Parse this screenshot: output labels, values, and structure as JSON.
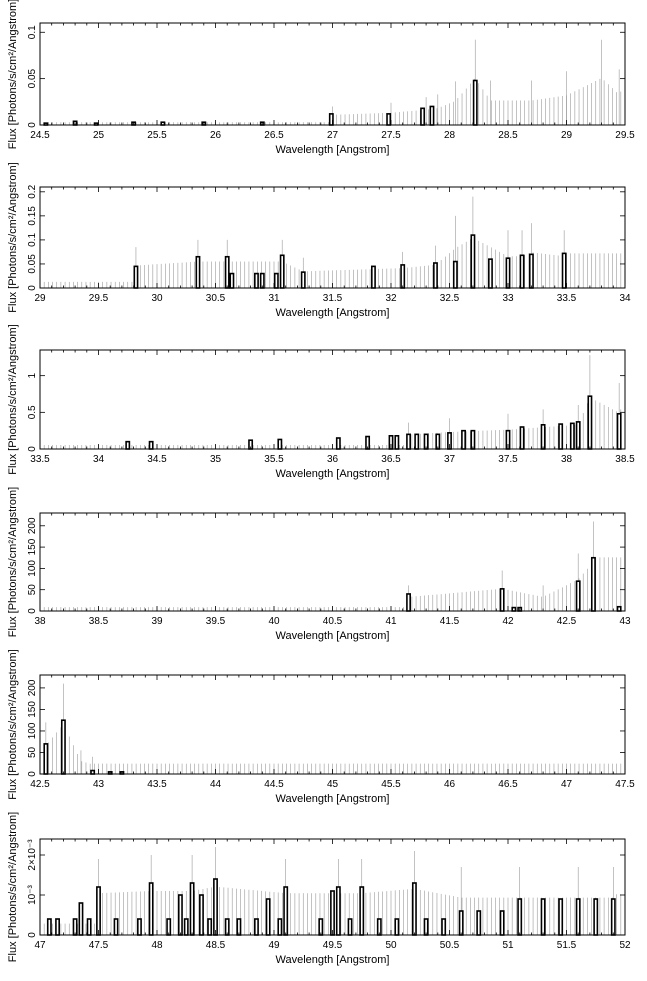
{
  "chart_data": [
    {
      "type": "bar",
      "xlabel": "Wavelength [Angstrom]",
      "ylabel": "Flux [Photons/s/cm²/Angstrom]",
      "xlim": [
        24.5,
        29.5
      ],
      "ylim": [
        0,
        0.11
      ],
      "xticks": [
        "24.5",
        "25",
        "25.5",
        "26",
        "26.5",
        "27",
        "27.5",
        "28",
        "28.5",
        "29",
        "29.5"
      ],
      "yticks": [
        "0",
        "0.05",
        "0.1"
      ],
      "bars": [
        {
          "x": 24.55,
          "y": 0.002
        },
        {
          "x": 24.8,
          "y": 0.004
        },
        {
          "x": 24.98,
          "y": 0.002
        },
        {
          "x": 25.3,
          "y": 0.003
        },
        {
          "x": 25.55,
          "y": 0.003
        },
        {
          "x": 25.9,
          "y": 0.003
        },
        {
          "x": 26.4,
          "y": 0.003
        },
        {
          "x": 26.99,
          "y": 0.012
        },
        {
          "x": 27.48,
          "y": 0.012
        },
        {
          "x": 27.77,
          "y": 0.018
        },
        {
          "x": 27.85,
          "y": 0.02
        },
        {
          "x": 28.22,
          "y": 0.048
        }
      ],
      "errors": [
        {
          "x": 27.0,
          "y": 0.02
        },
        {
          "x": 27.5,
          "y": 0.024
        },
        {
          "x": 27.8,
          "y": 0.03
        },
        {
          "x": 27.9,
          "y": 0.033
        },
        {
          "x": 28.05,
          "y": 0.047
        },
        {
          "x": 28.22,
          "y": 0.092
        },
        {
          "x": 28.35,
          "y": 0.048
        },
        {
          "x": 28.7,
          "y": 0.048
        },
        {
          "x": 29.0,
          "y": 0.058
        },
        {
          "x": 29.3,
          "y": 0.092
        },
        {
          "x": 29.45,
          "y": 0.06
        }
      ]
    },
    {
      "type": "bar",
      "xlabel": "Wavelength [Angstrom]",
      "ylabel": "Flux [Photons/s/cm²/Angstrom]",
      "xlim": [
        29,
        34
      ],
      "ylim": [
        0,
        0.21
      ],
      "xticks": [
        "29",
        "29.5",
        "30",
        "30.5",
        "31",
        "31.5",
        "32",
        "32.5",
        "33",
        "33.5",
        "34"
      ],
      "yticks": [
        "0",
        "0.05",
        "0.1",
        "0.15",
        "0.2"
      ],
      "bars": [
        {
          "x": 29.82,
          "y": 0.045
        },
        {
          "x": 30.35,
          "y": 0.065
        },
        {
          "x": 30.6,
          "y": 0.065
        },
        {
          "x": 30.64,
          "y": 0.03
        },
        {
          "x": 30.85,
          "y": 0.03
        },
        {
          "x": 30.9,
          "y": 0.03
        },
        {
          "x": 31.02,
          "y": 0.03
        },
        {
          "x": 31.07,
          "y": 0.068
        },
        {
          "x": 31.25,
          "y": 0.033
        },
        {
          "x": 31.85,
          "y": 0.045
        },
        {
          "x": 32.1,
          "y": 0.048
        },
        {
          "x": 32.38,
          "y": 0.052
        },
        {
          "x": 32.55,
          "y": 0.055
        },
        {
          "x": 32.7,
          "y": 0.11
        },
        {
          "x": 32.85,
          "y": 0.06
        },
        {
          "x": 33.0,
          "y": 0.062
        },
        {
          "x": 33.12,
          "y": 0.068
        },
        {
          "x": 33.2,
          "y": 0.07
        },
        {
          "x": 33.48,
          "y": 0.072
        }
      ],
      "errors": [
        {
          "x": 29.82,
          "y": 0.085
        },
        {
          "x": 30.35,
          "y": 0.1
        },
        {
          "x": 30.6,
          "y": 0.1
        },
        {
          "x": 31.07,
          "y": 0.1
        },
        {
          "x": 31.25,
          "y": 0.063
        },
        {
          "x": 32.1,
          "y": 0.075
        },
        {
          "x": 32.38,
          "y": 0.088
        },
        {
          "x": 32.55,
          "y": 0.15
        },
        {
          "x": 32.7,
          "y": 0.19
        },
        {
          "x": 33.0,
          "y": 0.12
        },
        {
          "x": 33.12,
          "y": 0.12
        },
        {
          "x": 33.2,
          "y": 0.135
        },
        {
          "x": 33.48,
          "y": 0.12
        }
      ]
    },
    {
      "type": "bar",
      "xlabel": "Wavelength [Angstrom]",
      "ylabel": "Flux [Photons/s/cm²/Angstrom]",
      "xlim": [
        33.5,
        38.5
      ],
      "ylim": [
        0,
        1.35
      ],
      "xticks": [
        "33.5",
        "34",
        "34.5",
        "35",
        "35.5",
        "36",
        "36.5",
        "37",
        "37.5",
        "38",
        "38.5"
      ],
      "yticks": [
        "0",
        "0.5",
        "1"
      ],
      "bars": [
        {
          "x": 34.25,
          "y": 0.1
        },
        {
          "x": 34.45,
          "y": 0.1
        },
        {
          "x": 35.3,
          "y": 0.12
        },
        {
          "x": 35.55,
          "y": 0.13
        },
        {
          "x": 36.05,
          "y": 0.15
        },
        {
          "x": 36.3,
          "y": 0.17
        },
        {
          "x": 36.5,
          "y": 0.18
        },
        {
          "x": 36.55,
          "y": 0.18
        },
        {
          "x": 36.65,
          "y": 0.2
        },
        {
          "x": 36.72,
          "y": 0.2
        },
        {
          "x": 36.8,
          "y": 0.2
        },
        {
          "x": 36.9,
          "y": 0.2
        },
        {
          "x": 37.0,
          "y": 0.22
        },
        {
          "x": 37.12,
          "y": 0.25
        },
        {
          "x": 37.2,
          "y": 0.25
        },
        {
          "x": 37.5,
          "y": 0.25
        },
        {
          "x": 37.62,
          "y": 0.3
        },
        {
          "x": 37.8,
          "y": 0.33
        },
        {
          "x": 37.95,
          "y": 0.34
        },
        {
          "x": 38.05,
          "y": 0.35
        },
        {
          "x": 38.1,
          "y": 0.37
        },
        {
          "x": 38.2,
          "y": 0.72
        },
        {
          "x": 38.45,
          "y": 0.48
        }
      ],
      "errors": [
        {
          "x": 36.65,
          "y": 0.36
        },
        {
          "x": 37.0,
          "y": 0.42
        },
        {
          "x": 37.5,
          "y": 0.48
        },
        {
          "x": 37.8,
          "y": 0.54
        },
        {
          "x": 38.1,
          "y": 0.6
        },
        {
          "x": 38.2,
          "y": 1.28
        },
        {
          "x": 38.45,
          "y": 0.9
        }
      ]
    },
    {
      "type": "bar",
      "xlabel": "Wavelength [Angstrom]",
      "ylabel": "Flux [Photons/s/cm²/Angstrom]",
      "xlim": [
        38,
        43
      ],
      "ylim": [
        0,
        230
      ],
      "xticks": [
        "38",
        "38.5",
        "39",
        "39.5",
        "40",
        "40.5",
        "41",
        "41.5",
        "42",
        "42.5",
        "43"
      ],
      "yticks": [
        "0",
        "50",
        "100",
        "150",
        "200"
      ],
      "bars": [
        {
          "x": 41.15,
          "y": 40
        },
        {
          "x": 41.95,
          "y": 52
        },
        {
          "x": 42.05,
          "y": 8
        },
        {
          "x": 42.1,
          "y": 8
        },
        {
          "x": 42.6,
          "y": 70
        },
        {
          "x": 42.73,
          "y": 125
        },
        {
          "x": 42.95,
          "y": 10
        }
      ],
      "errors": [
        {
          "x": 41.15,
          "y": 60
        },
        {
          "x": 41.95,
          "y": 95
        },
        {
          "x": 42.3,
          "y": 60
        },
        {
          "x": 42.6,
          "y": 135
        },
        {
          "x": 42.73,
          "y": 210
        }
      ]
    },
    {
      "type": "bar",
      "xlabel": "Wavelength [Angstrom]",
      "ylabel": "Flux [Photons/s/cm²/Angstrom]",
      "xlim": [
        42.5,
        47.5
      ],
      "ylim": [
        0,
        230
      ],
      "xticks": [
        "42.5",
        "43",
        "43.5",
        "44",
        "44.5",
        "45",
        "45.5",
        "46",
        "46.5",
        "47",
        "47.5"
      ],
      "yticks": [
        "0",
        "50",
        "100",
        "150",
        "200"
      ],
      "bars": [
        {
          "x": 42.55,
          "y": 70
        },
        {
          "x": 42.7,
          "y": 125
        },
        {
          "x": 42.95,
          "y": 8
        },
        {
          "x": 43.1,
          "y": 5
        },
        {
          "x": 43.2,
          "y": 5
        }
      ],
      "errors": [
        {
          "x": 42.55,
          "y": 120
        },
        {
          "x": 42.7,
          "y": 210
        },
        {
          "x": 42.85,
          "y": 55
        },
        {
          "x": 42.95,
          "y": 40
        }
      ]
    },
    {
      "type": "bar",
      "xlabel": "Wavelength [Angstrom]",
      "ylabel": "Flux [Photons/s/cm²/Angstrom]",
      "xlim": [
        47,
        52
      ],
      "ylim": [
        0,
        0.0024
      ],
      "xticks": [
        "47",
        "47.5",
        "48",
        "48.5",
        "49",
        "49.5",
        "50",
        "50.5",
        "51",
        "51.5",
        "52"
      ],
      "yticks": [
        "0",
        "10⁻³",
        "2×10⁻³"
      ],
      "bars": [
        {
          "x": 47.08,
          "y": 0.0004
        },
        {
          "x": 47.15,
          "y": 0.0004
        },
        {
          "x": 47.3,
          "y": 0.0004
        },
        {
          "x": 47.35,
          "y": 0.0008
        },
        {
          "x": 47.42,
          "y": 0.0004
        },
        {
          "x": 47.5,
          "y": 0.0012
        },
        {
          "x": 47.65,
          "y": 0.0004
        },
        {
          "x": 47.85,
          "y": 0.0004
        },
        {
          "x": 47.95,
          "y": 0.0013
        },
        {
          "x": 48.1,
          "y": 0.0004
        },
        {
          "x": 48.2,
          "y": 0.001
        },
        {
          "x": 48.25,
          "y": 0.0004
        },
        {
          "x": 48.3,
          "y": 0.0013
        },
        {
          "x": 48.38,
          "y": 0.001
        },
        {
          "x": 48.45,
          "y": 0.0004
        },
        {
          "x": 48.5,
          "y": 0.0014
        },
        {
          "x": 48.6,
          "y": 0.0004
        },
        {
          "x": 48.7,
          "y": 0.0004
        },
        {
          "x": 48.85,
          "y": 0.0004
        },
        {
          "x": 48.95,
          "y": 0.0009
        },
        {
          "x": 49.05,
          "y": 0.0004
        },
        {
          "x": 49.1,
          "y": 0.0012
        },
        {
          "x": 49.4,
          "y": 0.0004
        },
        {
          "x": 49.5,
          "y": 0.0011
        },
        {
          "x": 49.55,
          "y": 0.0012
        },
        {
          "x": 49.65,
          "y": 0.0004
        },
        {
          "x": 49.75,
          "y": 0.0012
        },
        {
          "x": 49.9,
          "y": 0.0004
        },
        {
          "x": 50.05,
          "y": 0.0004
        },
        {
          "x": 50.2,
          "y": 0.0013
        },
        {
          "x": 50.3,
          "y": 0.0004
        },
        {
          "x": 50.45,
          "y": 0.0004
        },
        {
          "x": 50.6,
          "y": 0.0006
        },
        {
          "x": 50.75,
          "y": 0.0006
        },
        {
          "x": 50.95,
          "y": 0.0006
        },
        {
          "x": 51.1,
          "y": 0.0009
        },
        {
          "x": 51.3,
          "y": 0.0009
        },
        {
          "x": 51.45,
          "y": 0.0009
        },
        {
          "x": 51.6,
          "y": 0.0009
        },
        {
          "x": 51.75,
          "y": 0.0009
        },
        {
          "x": 51.9,
          "y": 0.0009
        }
      ],
      "errors": [
        {
          "x": 47.5,
          "y": 0.0019
        },
        {
          "x": 47.95,
          "y": 0.002
        },
        {
          "x": 48.3,
          "y": 0.002
        },
        {
          "x": 48.5,
          "y": 0.0022
        },
        {
          "x": 49.1,
          "y": 0.0019
        },
        {
          "x": 49.55,
          "y": 0.0019
        },
        {
          "x": 49.75,
          "y": 0.0019
        },
        {
          "x": 50.2,
          "y": 0.0021
        },
        {
          "x": 50.6,
          "y": 0.0017
        },
        {
          "x": 51.1,
          "y": 0.0017
        },
        {
          "x": 51.6,
          "y": 0.0017
        },
        {
          "x": 51.9,
          "y": 0.0017
        }
      ]
    }
  ]
}
